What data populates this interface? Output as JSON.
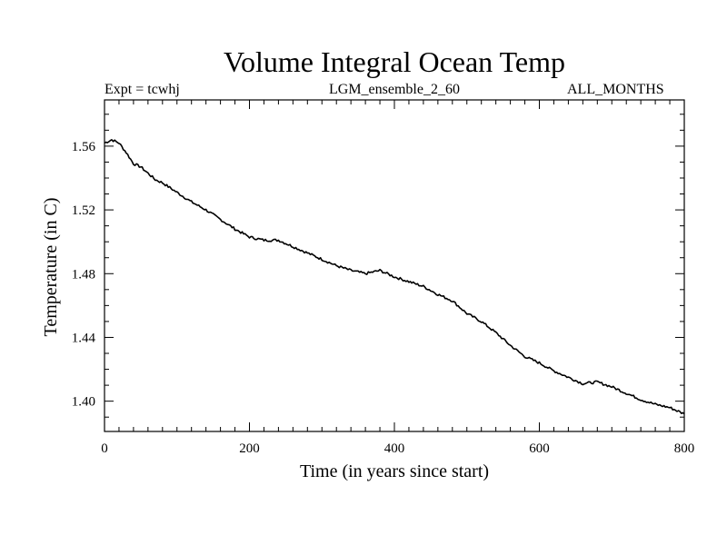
{
  "chart_data": {
    "type": "line",
    "title": "Volume Integral Ocean Temp",
    "subtitle_left": "Expt = tcwhj",
    "subtitle_center": "LGM_ensemble_2_60",
    "subtitle_right": "ALL_MONTHS",
    "xlabel": "Time (in years since start)",
    "ylabel": "Temperature (in C)",
    "xlim": [
      0,
      800
    ],
    "ylim": [
      1.381,
      1.589
    ],
    "xticks": [
      0,
      200,
      400,
      600,
      800
    ],
    "xtick_labels": [
      "0",
      "200",
      "400",
      "600",
      "800"
    ],
    "yticks": [
      1.4,
      1.44,
      1.48,
      1.52,
      1.56
    ],
    "ytick_labels": [
      "1.40",
      "1.44",
      "1.48",
      "1.52",
      "1.56"
    ],
    "grid": false,
    "series": [
      {
        "name": "Volume Integral Ocean Temp",
        "x": [
          0,
          10,
          20,
          30,
          40,
          50,
          60,
          70,
          80,
          100,
          120,
          140,
          160,
          180,
          200,
          220,
          240,
          260,
          280,
          300,
          320,
          340,
          360,
          380,
          400,
          420,
          440,
          460,
          480,
          500,
          520,
          540,
          560,
          580,
          600,
          620,
          640,
          660,
          680,
          700,
          720,
          740,
          760,
          780,
          800
        ],
        "values": [
          1.562,
          1.564,
          1.562,
          1.556,
          1.549,
          1.547,
          1.543,
          1.539,
          1.537,
          1.531,
          1.525,
          1.52,
          1.514,
          1.508,
          1.503,
          1.501,
          1.501,
          1.497,
          1.493,
          1.489,
          1.485,
          1.482,
          1.48,
          1.482,
          1.478,
          1.475,
          1.472,
          1.467,
          1.463,
          1.455,
          1.45,
          1.443,
          1.435,
          1.428,
          1.424,
          1.419,
          1.415,
          1.411,
          1.412,
          1.409,
          1.405,
          1.401,
          1.398,
          1.396,
          1.392
        ]
      }
    ]
  }
}
